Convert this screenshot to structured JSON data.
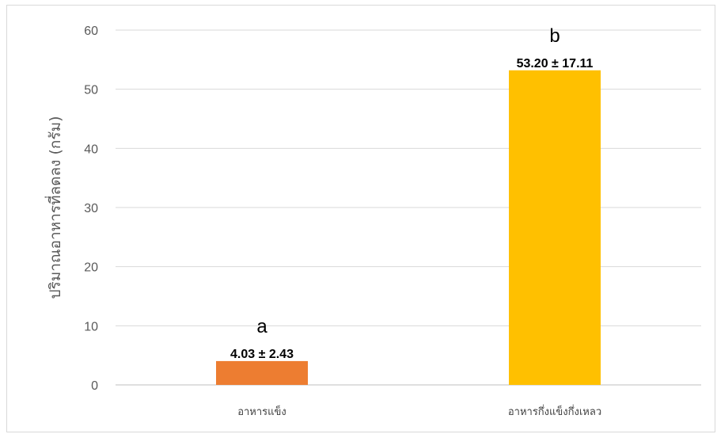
{
  "chart_data": {
    "type": "bar",
    "title": "",
    "xlabel": "",
    "ylabel": "ปริมาณอาหารที่ลดลง (กรัม)",
    "ylim": [
      0,
      60
    ],
    "yticks": [
      0,
      10,
      20,
      30,
      40,
      50,
      60
    ],
    "grid": true,
    "legend": "none",
    "categories": [
      "อาหารแข็ง",
      "อาหารกึ่งแข็งกึ่งเหลว"
    ],
    "values": [
      4.03,
      53.2
    ],
    "errors": [
      2.43,
      17.11
    ],
    "value_labels": [
      "4.03 ± 2.43",
      "53.20 ± 17.11"
    ],
    "significance_letters": [
      "a",
      "b"
    ],
    "bar_colors": [
      "#ED7D31",
      "#FFC000"
    ]
  }
}
